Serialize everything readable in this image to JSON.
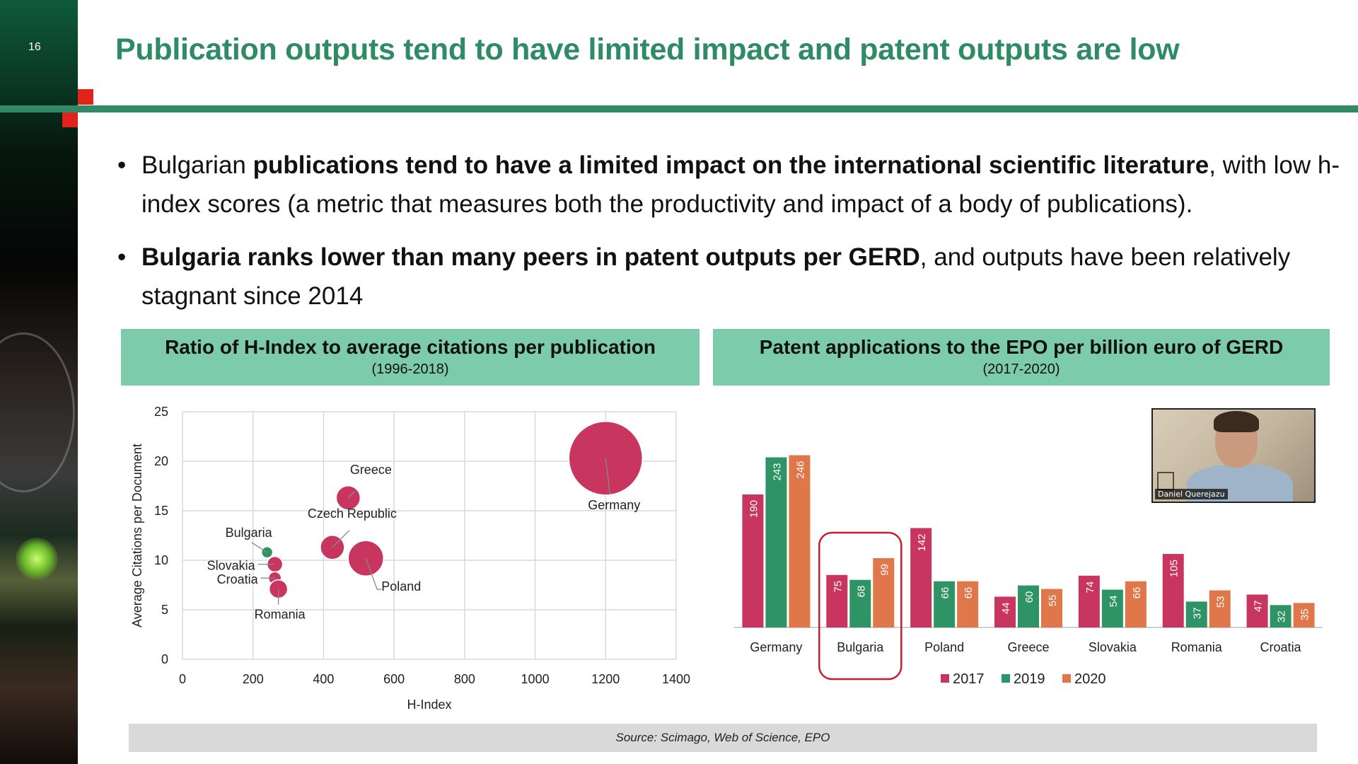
{
  "slide": {
    "number": "16",
    "title": "Publication outputs tend to have limited impact and patent outputs are low",
    "bullets": [
      {
        "pre": "Bulgarian ",
        "bold": "publications tend to have a limited impact on the international scientific literature",
        "post": ", with low h-index scores (a metric that measures both the productivity and impact of a body of publications)."
      },
      {
        "pre": "",
        "bold": "Bulgaria ranks lower than many peers in patent outputs per GERD",
        "post": ", and outputs have been relatively stagnant since 2014"
      }
    ],
    "source": "Source: Scimago, Web of Science, EPO",
    "webcam_name": "Daniel Querejazu"
  },
  "colors": {
    "green_title": "#2e8b66",
    "panel_green": "#7ccbab",
    "pink": "#c8365f",
    "teal": "#2e9466",
    "orange": "#e0774a",
    "highlight_red": "#c41e2e"
  },
  "chart_data": [
    {
      "type": "scatter",
      "title": "Ratio of H-Index to average citations per publication",
      "subtitle": "(1996-2018)",
      "xlabel": "H-Index",
      "ylabel": "Average Citations per Document",
      "xlim": [
        0,
        1400
      ],
      "ylim": [
        0,
        25
      ],
      "xticks": [
        0,
        200,
        400,
        600,
        800,
        1000,
        1200,
        1400
      ],
      "yticks": [
        0,
        5,
        10,
        15,
        20,
        25
      ],
      "grid": true,
      "points": [
        {
          "label": "Germany",
          "x": 1200,
          "y": 20.3,
          "size": 52
        },
        {
          "label": "Greece",
          "x": 470,
          "y": 16.3,
          "size": 17
        },
        {
          "label": "Czech Republic",
          "x": 425,
          "y": 11.3,
          "size": 17
        },
        {
          "label": "Poland",
          "x": 520,
          "y": 10.2,
          "size": 25
        },
        {
          "label": "Bulgaria",
          "x": 240,
          "y": 10.8,
          "size": 8
        },
        {
          "label": "Slovakia",
          "x": 262,
          "y": 9.6,
          "size": 11
        },
        {
          "label": "Croatia",
          "x": 262,
          "y": 8.2,
          "size": 9
        },
        {
          "label": "Romania",
          "x": 272,
          "y": 7.1,
          "size": 13
        }
      ]
    },
    {
      "type": "bar",
      "title": "Patent applications to the EPO per billion euro of GERD",
      "subtitle": "(2017-2020)",
      "categories": [
        "Germany",
        "Bulgaria",
        "Poland",
        "Greece",
        "Slovakia",
        "Romania",
        "Croatia"
      ],
      "series": [
        {
          "name": "2017",
          "values": [
            190,
            75,
            142,
            44,
            74,
            105,
            47
          ]
        },
        {
          "name": "2019",
          "values": [
            243,
            68,
            66,
            60,
            54,
            37,
            32
          ]
        },
        {
          "name": "2020",
          "values": [
            246,
            99,
            66,
            55,
            66,
            53,
            35
          ]
        }
      ],
      "ylim": [
        0,
        290
      ],
      "highlight": "Bulgaria",
      "legend": "bottom"
    }
  ]
}
